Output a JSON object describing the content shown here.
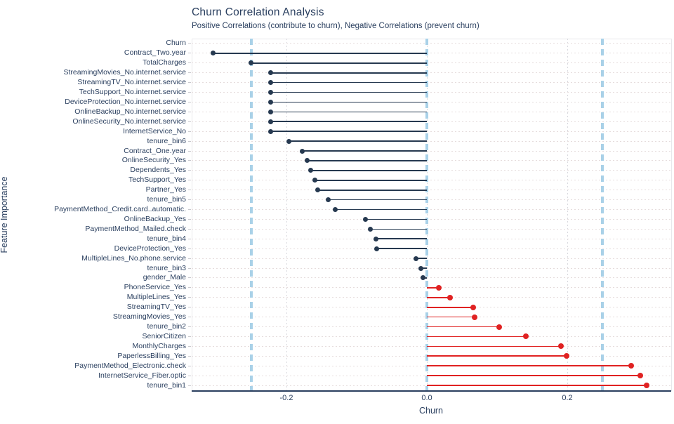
{
  "chart_data": {
    "type": "lollipop",
    "orientation": "horizontal",
    "title": "Churn Correlation Analysis",
    "subtitle": "Positive Correlations (contribute to churn), Negative Correlations (prevent churn)",
    "xlabel": "Churn",
    "ylabel": "Feature Importance",
    "xlim": [
      -0.335,
      0.347
    ],
    "xticks": [
      -0.2,
      0.0,
      0.2
    ],
    "xtick_labels": [
      "-0.2",
      "0.0",
      "0.2"
    ],
    "grid": true,
    "reference_lines": {
      "values": [
        -0.25,
        0.0,
        0.25
      ],
      "style": "dashed",
      "color": "#a9d1e8"
    },
    "colors": {
      "negative_stem": "#263950",
      "positive_stem": "#e02222",
      "axis_text": "#2a3f5f"
    },
    "categories": [
      "Churn",
      "Contract_Two.year",
      "TotalCharges",
      "StreamingMovies_No.internet.service",
      "StreamingTV_No.internet.service",
      "TechSupport_No.internet.service",
      "DeviceProtection_No.internet.service",
      "OnlineBackup_No.internet.service",
      "OnlineSecurity_No.internet.service",
      "InternetService_No",
      "tenure_bin6",
      "Contract_One.year",
      "OnlineSecurity_Yes",
      "Dependents_Yes",
      "TechSupport_Yes",
      "Partner_Yes",
      "tenure_bin5",
      "PaymentMethod_Credit.card..automatic.",
      "OnlineBackup_Yes",
      "PaymentMethod_Mailed.check",
      "tenure_bin4",
      "DeviceProtection_Yes",
      "MultipleLines_No.phone.service",
      "tenure_bin3",
      "gender_Male",
      "PhoneService_Yes",
      "MultipleLines_Yes",
      "StreamingTV_Yes",
      "StreamingMovies_Yes",
      "tenure_bin2",
      "SeniorCitizen",
      "MonthlyCharges",
      "PaperlessBilling_Yes",
      "PaymentMethod_Electronic.check",
      "InternetService_Fiber.optic",
      "tenure_bin1"
    ],
    "values": [
      null,
      -0.305,
      -0.251,
      -0.223,
      -0.223,
      -0.223,
      -0.223,
      -0.223,
      -0.223,
      -0.223,
      -0.197,
      -0.178,
      -0.171,
      -0.166,
      -0.16,
      -0.156,
      -0.141,
      -0.131,
      -0.088,
      -0.081,
      -0.073,
      -0.072,
      -0.016,
      -0.009,
      -0.006,
      0.017,
      0.033,
      0.066,
      0.068,
      0.103,
      0.141,
      0.191,
      0.199,
      0.291,
      0.304,
      0.313
    ]
  }
}
